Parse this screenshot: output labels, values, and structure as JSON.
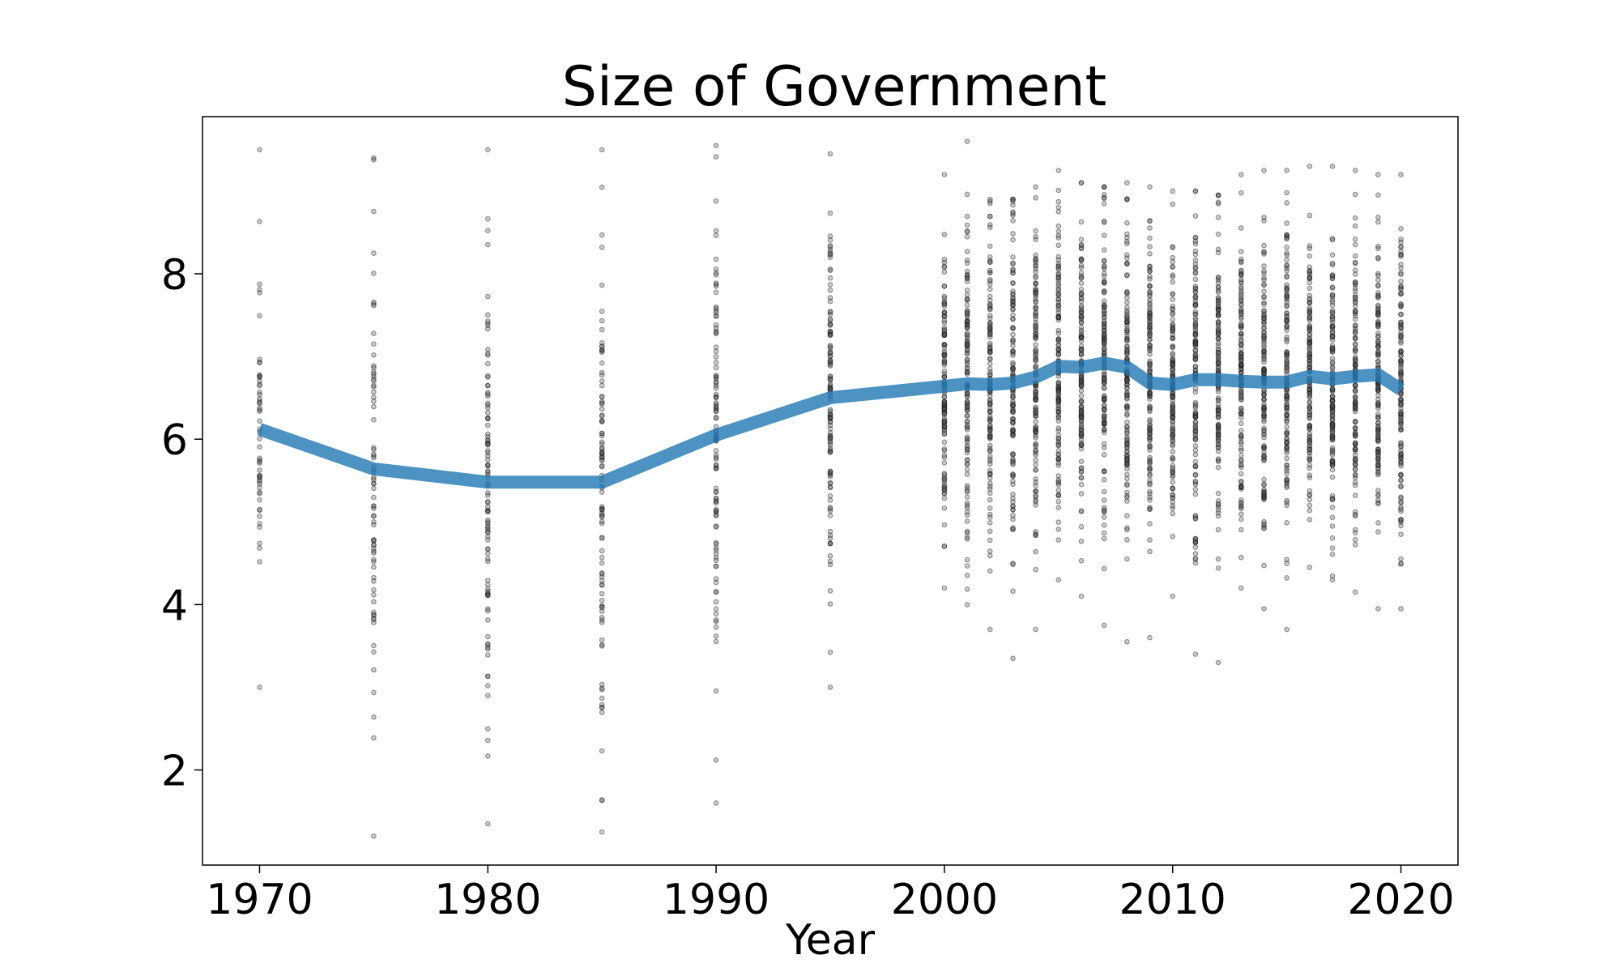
{
  "chart_data": {
    "type": "scatter",
    "title": "Size of Government",
    "xlabel": "Year",
    "ylabel": "",
    "xlim": [
      1967.5,
      2022.5
    ],
    "ylim": [
      0.85,
      9.9
    ],
    "xticks": [
      1970,
      1980,
      1990,
      2000,
      2010,
      2020
    ],
    "yticks": [
      2,
      4,
      6,
      8
    ],
    "grid": false,
    "trend": {
      "x": [
        1970,
        1975,
        1980,
        1985,
        1990,
        1995,
        2000,
        2001,
        2002,
        2003,
        2004,
        2005,
        2006,
        2007,
        2008,
        2009,
        2010,
        2011,
        2012,
        2013,
        2014,
        2015,
        2016,
        2017,
        2018,
        2019,
        2020
      ],
      "y": [
        6.12,
        5.64,
        5.48,
        5.48,
        6.05,
        6.5,
        6.64,
        6.67,
        6.66,
        6.68,
        6.75,
        6.88,
        6.87,
        6.92,
        6.87,
        6.68,
        6.66,
        6.72,
        6.72,
        6.7,
        6.69,
        6.69,
        6.76,
        6.73,
        6.76,
        6.78,
        6.6
      ]
    },
    "scatter_groups": [
      {
        "x": 1970,
        "n": 55,
        "min": 3.0,
        "max": 9.5,
        "mean": 6.12
      },
      {
        "x": 1975,
        "n": 75,
        "min": 1.2,
        "max": 9.4,
        "mean": 5.64
      },
      {
        "x": 1980,
        "n": 100,
        "min": 1.35,
        "max": 9.5,
        "mean": 5.48
      },
      {
        "x": 1985,
        "n": 100,
        "min": 1.25,
        "max": 9.5,
        "mean": 5.48
      },
      {
        "x": 1990,
        "n": 110,
        "min": 1.6,
        "max": 9.55,
        "mean": 6.05
      },
      {
        "x": 1995,
        "n": 120,
        "min": 3.0,
        "max": 9.45,
        "mean": 6.5
      },
      {
        "x": 2000,
        "n": 125,
        "min": 4.2,
        "max": 9.2,
        "mean": 6.64
      },
      {
        "x": 2001,
        "n": 130,
        "min": 4.0,
        "max": 9.6,
        "mean": 6.67
      },
      {
        "x": 2002,
        "n": 130,
        "min": 3.7,
        "max": 8.9,
        "mean": 6.66
      },
      {
        "x": 2003,
        "n": 130,
        "min": 3.35,
        "max": 8.9,
        "mean": 6.68
      },
      {
        "x": 2004,
        "n": 140,
        "min": 3.7,
        "max": 9.05,
        "mean": 6.75
      },
      {
        "x": 2005,
        "n": 140,
        "min": 4.3,
        "max": 9.25,
        "mean": 6.88
      },
      {
        "x": 2006,
        "n": 140,
        "min": 4.1,
        "max": 9.1,
        "mean": 6.87
      },
      {
        "x": 2007,
        "n": 140,
        "min": 3.75,
        "max": 9.05,
        "mean": 6.92
      },
      {
        "x": 2008,
        "n": 140,
        "min": 3.55,
        "max": 9.1,
        "mean": 6.87
      },
      {
        "x": 2009,
        "n": 140,
        "min": 3.6,
        "max": 9.05,
        "mean": 6.68
      },
      {
        "x": 2010,
        "n": 140,
        "min": 4.1,
        "max": 9.0,
        "mean": 6.66
      },
      {
        "x": 2011,
        "n": 140,
        "min": 3.4,
        "max": 9.0,
        "mean": 6.72
      },
      {
        "x": 2012,
        "n": 140,
        "min": 3.3,
        "max": 8.95,
        "mean": 6.72
      },
      {
        "x": 2013,
        "n": 140,
        "min": 4.2,
        "max": 9.2,
        "mean": 6.7
      },
      {
        "x": 2014,
        "n": 140,
        "min": 3.95,
        "max": 9.25,
        "mean": 6.69
      },
      {
        "x": 2015,
        "n": 140,
        "min": 3.7,
        "max": 9.25,
        "mean": 6.69
      },
      {
        "x": 2016,
        "n": 140,
        "min": 4.45,
        "max": 9.3,
        "mean": 6.76
      },
      {
        "x": 2017,
        "n": 140,
        "min": 4.3,
        "max": 9.3,
        "mean": 6.73
      },
      {
        "x": 2018,
        "n": 140,
        "min": 4.15,
        "max": 9.25,
        "mean": 6.76
      },
      {
        "x": 2019,
        "n": 140,
        "min": 3.95,
        "max": 9.2,
        "mean": 6.78
      },
      {
        "x": 2020,
        "n": 140,
        "min": 3.95,
        "max": 9.2,
        "mean": 6.6
      }
    ],
    "colors": {
      "trend": "#1f77b4",
      "points": "#333333"
    }
  }
}
